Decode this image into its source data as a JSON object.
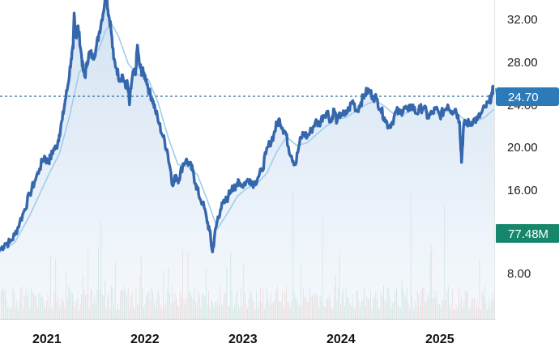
{
  "chart_data": {
    "type": "line",
    "y_ticks": [
      "32.00",
      "28.00",
      "24.00",
      "20.00",
      "16.00",
      "8.00"
    ],
    "x_ticks": [
      "2021",
      "2022",
      "2023",
      "2024",
      "2025"
    ],
    "last_price": {
      "value": 24.7,
      "label": "24.70"
    },
    "last_volume": {
      "value": 77.48,
      "label": "77.48M"
    },
    "x_range": [
      2020.55,
      2025.55
    ],
    "price_points": [
      [
        2020.55,
        9.6
      ],
      [
        2020.6,
        10.2
      ],
      [
        2020.65,
        10.3
      ],
      [
        2020.7,
        11.0
      ],
      [
        2020.75,
        12.2
      ],
      [
        2020.8,
        13.4
      ],
      [
        2020.85,
        14.8
      ],
      [
        2020.9,
        16.0
      ],
      [
        2020.95,
        17.2
      ],
      [
        2021.0,
        18.4
      ],
      [
        2021.03,
        17.8
      ],
      [
        2021.06,
        18.2
      ],
      [
        2021.09,
        19.0
      ],
      [
        2021.12,
        19.2
      ],
      [
        2021.15,
        20.4
      ],
      [
        2021.18,
        21.8
      ],
      [
        2021.21,
        23.6
      ],
      [
        2021.24,
        25.2
      ],
      [
        2021.27,
        27.5
      ],
      [
        2021.29,
        28.5
      ],
      [
        2021.3,
        31.8
      ],
      [
        2021.32,
        29.5
      ],
      [
        2021.34,
        30.6
      ],
      [
        2021.37,
        28.2
      ],
      [
        2021.39,
        26.5
      ],
      [
        2021.41,
        25.8
      ],
      [
        2021.43,
        27.2
      ],
      [
        2021.46,
        28.2
      ],
      [
        2021.49,
        27.6
      ],
      [
        2021.52,
        28.4
      ],
      [
        2021.55,
        29.8
      ],
      [
        2021.58,
        31.2
      ],
      [
        2021.61,
        32.8
      ],
      [
        2021.63,
        33.2
      ],
      [
        2021.65,
        31.6
      ],
      [
        2021.67,
        30.6
      ],
      [
        2021.7,
        27.5
      ],
      [
        2021.73,
        26.6
      ],
      [
        2021.76,
        25.6
      ],
      [
        2021.79,
        26.0
      ],
      [
        2021.82,
        24.8
      ],
      [
        2021.84,
        25.2
      ],
      [
        2021.86,
        23.2
      ],
      [
        2021.88,
        25.2
      ],
      [
        2021.9,
        26.2
      ],
      [
        2021.92,
        26.0
      ],
      [
        2021.94,
        28.8
      ],
      [
        2021.96,
        27.0
      ],
      [
        2021.98,
        26.4
      ],
      [
        2022.0,
        26.2
      ],
      [
        2022.03,
        25.6
      ],
      [
        2022.06,
        24.4
      ],
      [
        2022.09,
        23.8
      ],
      [
        2022.12,
        22.8
      ],
      [
        2022.16,
        21.4
      ],
      [
        2022.2,
        20.2
      ],
      [
        2022.24,
        19.0
      ],
      [
        2022.28,
        16.8
      ],
      [
        2022.3,
        15.6
      ],
      [
        2022.33,
        16.6
      ],
      [
        2022.36,
        16.2
      ],
      [
        2022.4,
        17.6
      ],
      [
        2022.43,
        18.0
      ],
      [
        2022.47,
        17.6
      ],
      [
        2022.5,
        17.0
      ],
      [
        2022.53,
        15.8
      ],
      [
        2022.56,
        14.8
      ],
      [
        2022.6,
        14.0
      ],
      [
        2022.64,
        12.6
      ],
      [
        2022.67,
        11.4
      ],
      [
        2022.7,
        9.4
      ],
      [
        2022.72,
        10.8
      ],
      [
        2022.75,
        12.4
      ],
      [
        2022.78,
        13.4
      ],
      [
        2022.82,
        14.0
      ],
      [
        2022.86,
        14.6
      ],
      [
        2022.9,
        15.6
      ],
      [
        2022.93,
        15.2
      ],
      [
        2022.96,
        16.2
      ],
      [
        2023.0,
        15.6
      ],
      [
        2023.04,
        16.0
      ],
      [
        2023.08,
        16.2
      ],
      [
        2023.12,
        15.8
      ],
      [
        2023.16,
        16.4
      ],
      [
        2023.2,
        17.0
      ],
      [
        2023.24,
        18.6
      ],
      [
        2023.28,
        19.6
      ],
      [
        2023.32,
        20.4
      ],
      [
        2023.35,
        21.4
      ],
      [
        2023.38,
        21.8
      ],
      [
        2023.41,
        21.0
      ],
      [
        2023.44,
        20.6
      ],
      [
        2023.47,
        19.2
      ],
      [
        2023.5,
        18.4
      ],
      [
        2023.54,
        17.6
      ],
      [
        2023.58,
        19.6
      ],
      [
        2023.62,
        20.6
      ],
      [
        2023.66,
        20.2
      ],
      [
        2023.7,
        20.8
      ],
      [
        2023.74,
        21.6
      ],
      [
        2023.78,
        21.4
      ],
      [
        2023.82,
        22.2
      ],
      [
        2023.86,
        22.6
      ],
      [
        2023.9,
        21.6
      ],
      [
        2023.93,
        22.8
      ],
      [
        2023.96,
        21.6
      ],
      [
        2024.0,
        22.4
      ],
      [
        2024.04,
        22.2
      ],
      [
        2024.08,
        22.8
      ],
      [
        2024.12,
        23.6
      ],
      [
        2024.16,
        22.6
      ],
      [
        2024.2,
        23.4
      ],
      [
        2024.24,
        24.2
      ],
      [
        2024.28,
        24.6
      ],
      [
        2024.32,
        24.0
      ],
      [
        2024.36,
        23.8
      ],
      [
        2024.4,
        22.8
      ],
      [
        2024.44,
        22.0
      ],
      [
        2024.48,
        21.2
      ],
      [
        2024.52,
        21.6
      ],
      [
        2024.56,
        22.6
      ],
      [
        2024.6,
        22.4
      ],
      [
        2024.64,
        23.0
      ],
      [
        2024.68,
        22.6
      ],
      [
        2024.72,
        23.2
      ],
      [
        2024.76,
        22.4
      ],
      [
        2024.8,
        22.8
      ],
      [
        2024.84,
        23.0
      ],
      [
        2024.88,
        22.0
      ],
      [
        2024.92,
        22.4
      ],
      [
        2024.96,
        22.8
      ],
      [
        2025.0,
        22.2
      ],
      [
        2025.04,
        22.6
      ],
      [
        2025.08,
        23.2
      ],
      [
        2025.12,
        22.6
      ],
      [
        2025.16,
        22.8
      ],
      [
        2025.2,
        21.6
      ],
      [
        2025.22,
        17.8
      ],
      [
        2025.24,
        21.2
      ],
      [
        2025.27,
        21.6
      ],
      [
        2025.3,
        21.4
      ],
      [
        2025.34,
        21.8
      ],
      [
        2025.38,
        21.8
      ],
      [
        2025.42,
        22.4
      ],
      [
        2025.46,
        23.0
      ],
      [
        2025.5,
        23.4
      ],
      [
        2025.53,
        24.4
      ],
      [
        2025.55,
        24.7
      ]
    ],
    "ma_points": [
      [
        2020.55,
        9.4
      ],
      [
        2020.7,
        10.3
      ],
      [
        2020.85,
        12.8
      ],
      [
        2020.95,
        14.8
      ],
      [
        2021.05,
        16.8
      ],
      [
        2021.15,
        18.6
      ],
      [
        2021.25,
        22.0
      ],
      [
        2021.35,
        26.2
      ],
      [
        2021.45,
        27.6
      ],
      [
        2021.55,
        28.4
      ],
      [
        2021.62,
        30.2
      ],
      [
        2021.68,
        30.8
      ],
      [
        2021.75,
        29.6
      ],
      [
        2021.85,
        27.0
      ],
      [
        2021.95,
        26.0
      ],
      [
        2022.05,
        25.6
      ],
      [
        2022.15,
        23.4
      ],
      [
        2022.25,
        20.2
      ],
      [
        2022.35,
        17.6
      ],
      [
        2022.45,
        17.4
      ],
      [
        2022.55,
        16.6
      ],
      [
        2022.65,
        14.2
      ],
      [
        2022.75,
        11.6
      ],
      [
        2022.85,
        13.0
      ],
      [
        2022.95,
        14.6
      ],
      [
        2023.05,
        15.4
      ],
      [
        2023.15,
        15.8
      ],
      [
        2023.25,
        16.8
      ],
      [
        2023.35,
        18.8
      ],
      [
        2023.45,
        20.2
      ],
      [
        2023.55,
        19.4
      ],
      [
        2023.65,
        19.6
      ],
      [
        2023.75,
        20.4
      ],
      [
        2023.85,
        21.2
      ],
      [
        2023.95,
        21.8
      ],
      [
        2024.05,
        22.0
      ],
      [
        2024.15,
        22.6
      ],
      [
        2024.25,
        23.2
      ],
      [
        2024.35,
        23.6
      ],
      [
        2024.45,
        23.0
      ],
      [
        2024.55,
        22.2
      ],
      [
        2024.65,
        22.4
      ],
      [
        2024.75,
        22.8
      ],
      [
        2024.85,
        22.6
      ],
      [
        2024.95,
        22.4
      ],
      [
        2025.05,
        22.6
      ],
      [
        2025.15,
        22.6
      ],
      [
        2025.25,
        21.8
      ],
      [
        2025.35,
        21.6
      ],
      [
        2025.45,
        22.0
      ],
      [
        2025.55,
        22.8
      ]
    ],
    "ylim": [
      5.0,
      33.5
    ],
    "grid": false,
    "colors": {
      "price_line": "#3567ad",
      "ma_line": "#9fcdee",
      "area_fill": "#d8e6f4",
      "last_price_badge": "#2c7ab8",
      "volume_badge": "#17876c",
      "volume_up": "#6fb79d",
      "volume_down": "#e0867d"
    }
  }
}
